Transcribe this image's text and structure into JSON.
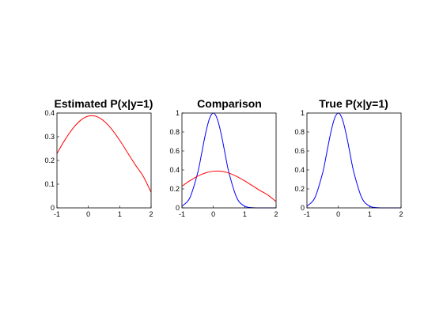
{
  "chart_data": [
    {
      "type": "line",
      "title": "Estimated P(x|y=1)",
      "xlabel": "",
      "ylabel": "",
      "xlim": [
        -1,
        2
      ],
      "ylim": [
        0,
        0.4
      ],
      "xticks": [
        "-1",
        "0",
        "1",
        "2"
      ],
      "yticks": [
        "0",
        "0.1",
        "0.2",
        "0.3",
        "0.4"
      ],
      "grid": false,
      "series": [
        {
          "color": "#ff0000",
          "x": [
            -1,
            -0.75,
            -0.5,
            -0.25,
            0,
            0.25,
            0.5,
            0.75,
            1,
            1.25,
            1.5,
            1.75,
            2
          ],
          "y": [
            0.229,
            0.286,
            0.334,
            0.369,
            0.387,
            0.386,
            0.366,
            0.331,
            0.285,
            0.233,
            0.181,
            0.133,
            0.066
          ]
        }
      ]
    },
    {
      "type": "line",
      "title": "Comparison",
      "xlabel": "",
      "ylabel": "",
      "xlim": [
        -1,
        2
      ],
      "ylim": [
        0,
        1
      ],
      "xticks": [
        "-1",
        "0",
        "1",
        "2"
      ],
      "yticks": [
        "0",
        "0.2",
        "0.4",
        "0.6",
        "0.8",
        "1"
      ],
      "grid": false,
      "series": [
        {
          "color": "#0000ff",
          "x": [
            -1,
            -0.75,
            -0.5,
            -0.375,
            -0.25,
            -0.125,
            0,
            0.125,
            0.25,
            0.375,
            0.5,
            0.75,
            1,
            1.25,
            1.5,
            1.75,
            2
          ],
          "y": [
            0.018,
            0.105,
            0.368,
            0.57,
            0.779,
            0.939,
            1.0,
            0.939,
            0.779,
            0.57,
            0.368,
            0.105,
            0.018,
            0.002,
            0.0,
            0.0,
            0.0
          ]
        },
        {
          "color": "#ff0000",
          "x": [
            -1,
            -0.75,
            -0.5,
            -0.25,
            0,
            0.25,
            0.5,
            0.75,
            1,
            1.25,
            1.5,
            1.75,
            2
          ],
          "y": [
            0.229,
            0.286,
            0.334,
            0.369,
            0.387,
            0.386,
            0.366,
            0.331,
            0.285,
            0.233,
            0.181,
            0.133,
            0.066
          ]
        }
      ]
    },
    {
      "type": "line",
      "title": "True P(x|y=1)",
      "xlabel": "",
      "ylabel": "",
      "xlim": [
        -1,
        2
      ],
      "ylim": [
        0,
        1
      ],
      "xticks": [
        "-1",
        "0",
        "1",
        "2"
      ],
      "yticks": [
        "0",
        "0.2",
        "0.4",
        "0.6",
        "0.8",
        "1"
      ],
      "grid": false,
      "series": [
        {
          "color": "#0000ff",
          "x": [
            -1,
            -0.75,
            -0.5,
            -0.375,
            -0.25,
            -0.125,
            0,
            0.125,
            0.25,
            0.375,
            0.5,
            0.75,
            1,
            1.25,
            1.5,
            1.75,
            2
          ],
          "y": [
            0.018,
            0.105,
            0.368,
            0.57,
            0.779,
            0.939,
            1.0,
            0.939,
            0.779,
            0.57,
            0.368,
            0.105,
            0.018,
            0.002,
            0.0,
            0.0,
            0.0
          ]
        }
      ]
    }
  ]
}
